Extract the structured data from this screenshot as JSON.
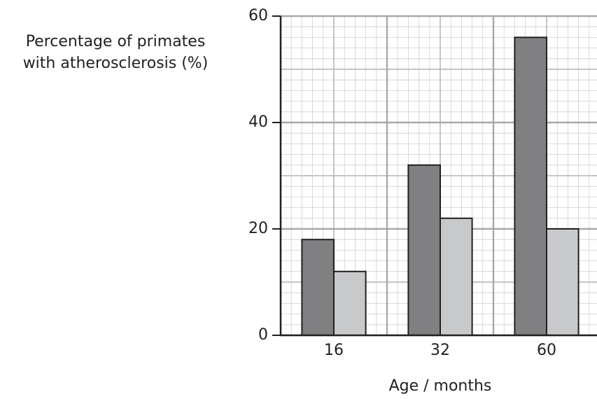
{
  "chart_data": {
    "type": "bar",
    "y_label": [
      "Percentage of primates",
      "with atherosclerosis (%)"
    ],
    "x_label": "Age / months",
    "categories": [
      "16",
      "32",
      "60"
    ],
    "series": [
      {
        "color": "#808083",
        "values": [
          18,
          32,
          56
        ]
      },
      {
        "color": "#c8c9cb",
        "values": [
          12,
          22,
          20
        ]
      }
    ],
    "ylim": [
      0,
      60
    ],
    "yticks": [
      0,
      20,
      40,
      60
    ],
    "grid": true
  }
}
